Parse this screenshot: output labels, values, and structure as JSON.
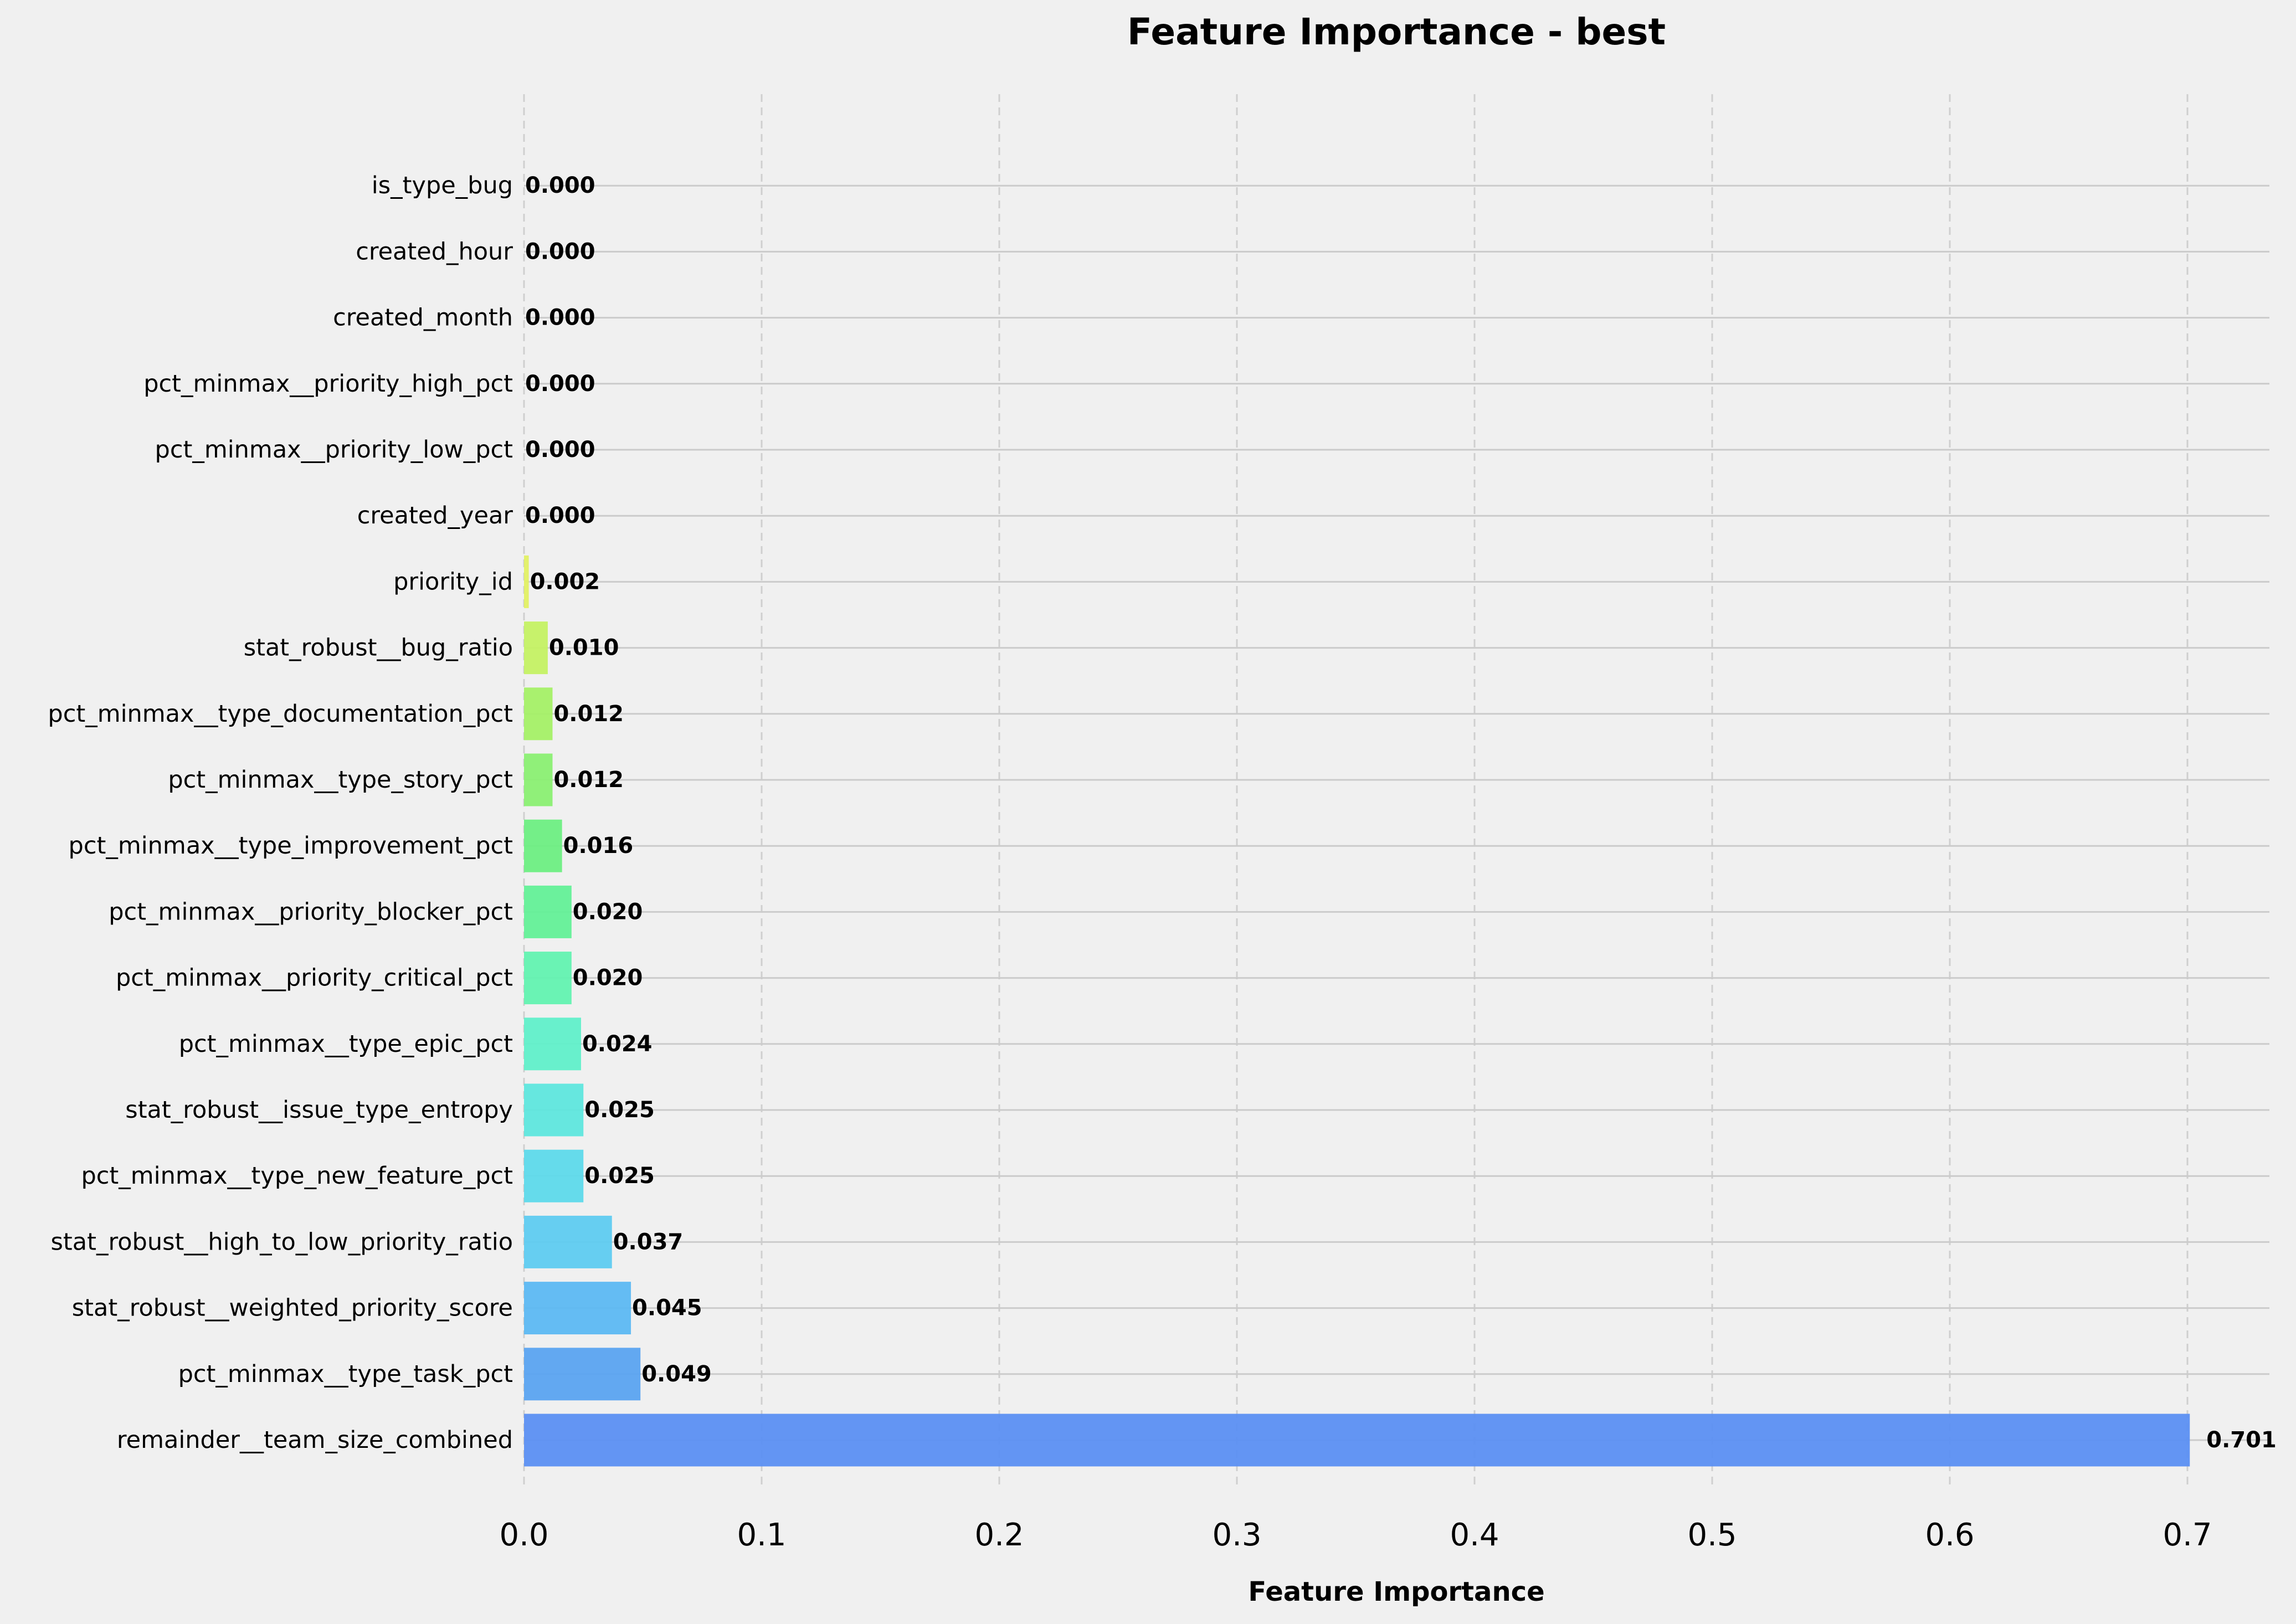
{
  "chart_data": {
    "type": "bar",
    "orientation": "horizontal",
    "title": "Feature Importance - best",
    "xlabel": "Feature Importance",
    "ylabel": "",
    "xlim": [
      0,
      0.735
    ],
    "xticks": [
      "0.0",
      "0.1",
      "0.2",
      "0.3",
      "0.4",
      "0.5",
      "0.6",
      "0.7"
    ],
    "xtick_values": [
      0,
      0.1,
      0.2,
      0.3,
      0.4,
      0.5,
      0.6,
      0.7
    ],
    "grid": "vertical dashed + horizontal solid",
    "categories": [
      "remainder__team_size_combined",
      "pct_minmax__type_task_pct",
      "stat_robust__weighted_priority_score",
      "stat_robust__high_to_low_priority_ratio",
      "pct_minmax__type_new_feature_pct",
      "stat_robust__issue_type_entropy",
      "pct_minmax__type_epic_pct",
      "pct_minmax__priority_critical_pct",
      "pct_minmax__priority_blocker_pct",
      "pct_minmax__type_improvement_pct",
      "pct_minmax__type_story_pct",
      "pct_minmax__type_documentation_pct",
      "stat_robust__bug_ratio",
      "priority_id",
      "created_year",
      "pct_minmax__priority_low_pct",
      "pct_minmax__priority_high_pct",
      "created_month",
      "created_hour",
      "is_type_bug"
    ],
    "values": [
      0.701,
      0.049,
      0.045,
      0.037,
      0.025,
      0.025,
      0.024,
      0.02,
      0.02,
      0.016,
      0.012,
      0.012,
      0.01,
      0.002,
      0.0,
      0.0,
      0.0,
      0.0,
      0.0,
      0.0
    ],
    "value_labels": [
      "0.701",
      "0.049",
      "0.045",
      "0.037",
      "0.025",
      "0.025",
      "0.024",
      "0.020",
      "0.020",
      "0.016",
      "0.012",
      "0.012",
      "0.010",
      "0.002",
      "0.000",
      "0.000",
      "0.000",
      "0.000",
      "0.000",
      "0.000"
    ],
    "colors": [
      "#5b8ff2",
      "#5aa3f0",
      "#5cb8f2",
      "#5ecbf0",
      "#5dd9ea",
      "#5ee6dd",
      "#60efc9",
      "#62f2b0",
      "#63f097",
      "#6dee82",
      "#8aef72",
      "#a4f066",
      "#c4f163",
      "#e2f063",
      "#ecec63",
      "#ecec63",
      "#ecec63",
      "#ecec63",
      "#ecec63",
      "#ecec63"
    ]
  }
}
